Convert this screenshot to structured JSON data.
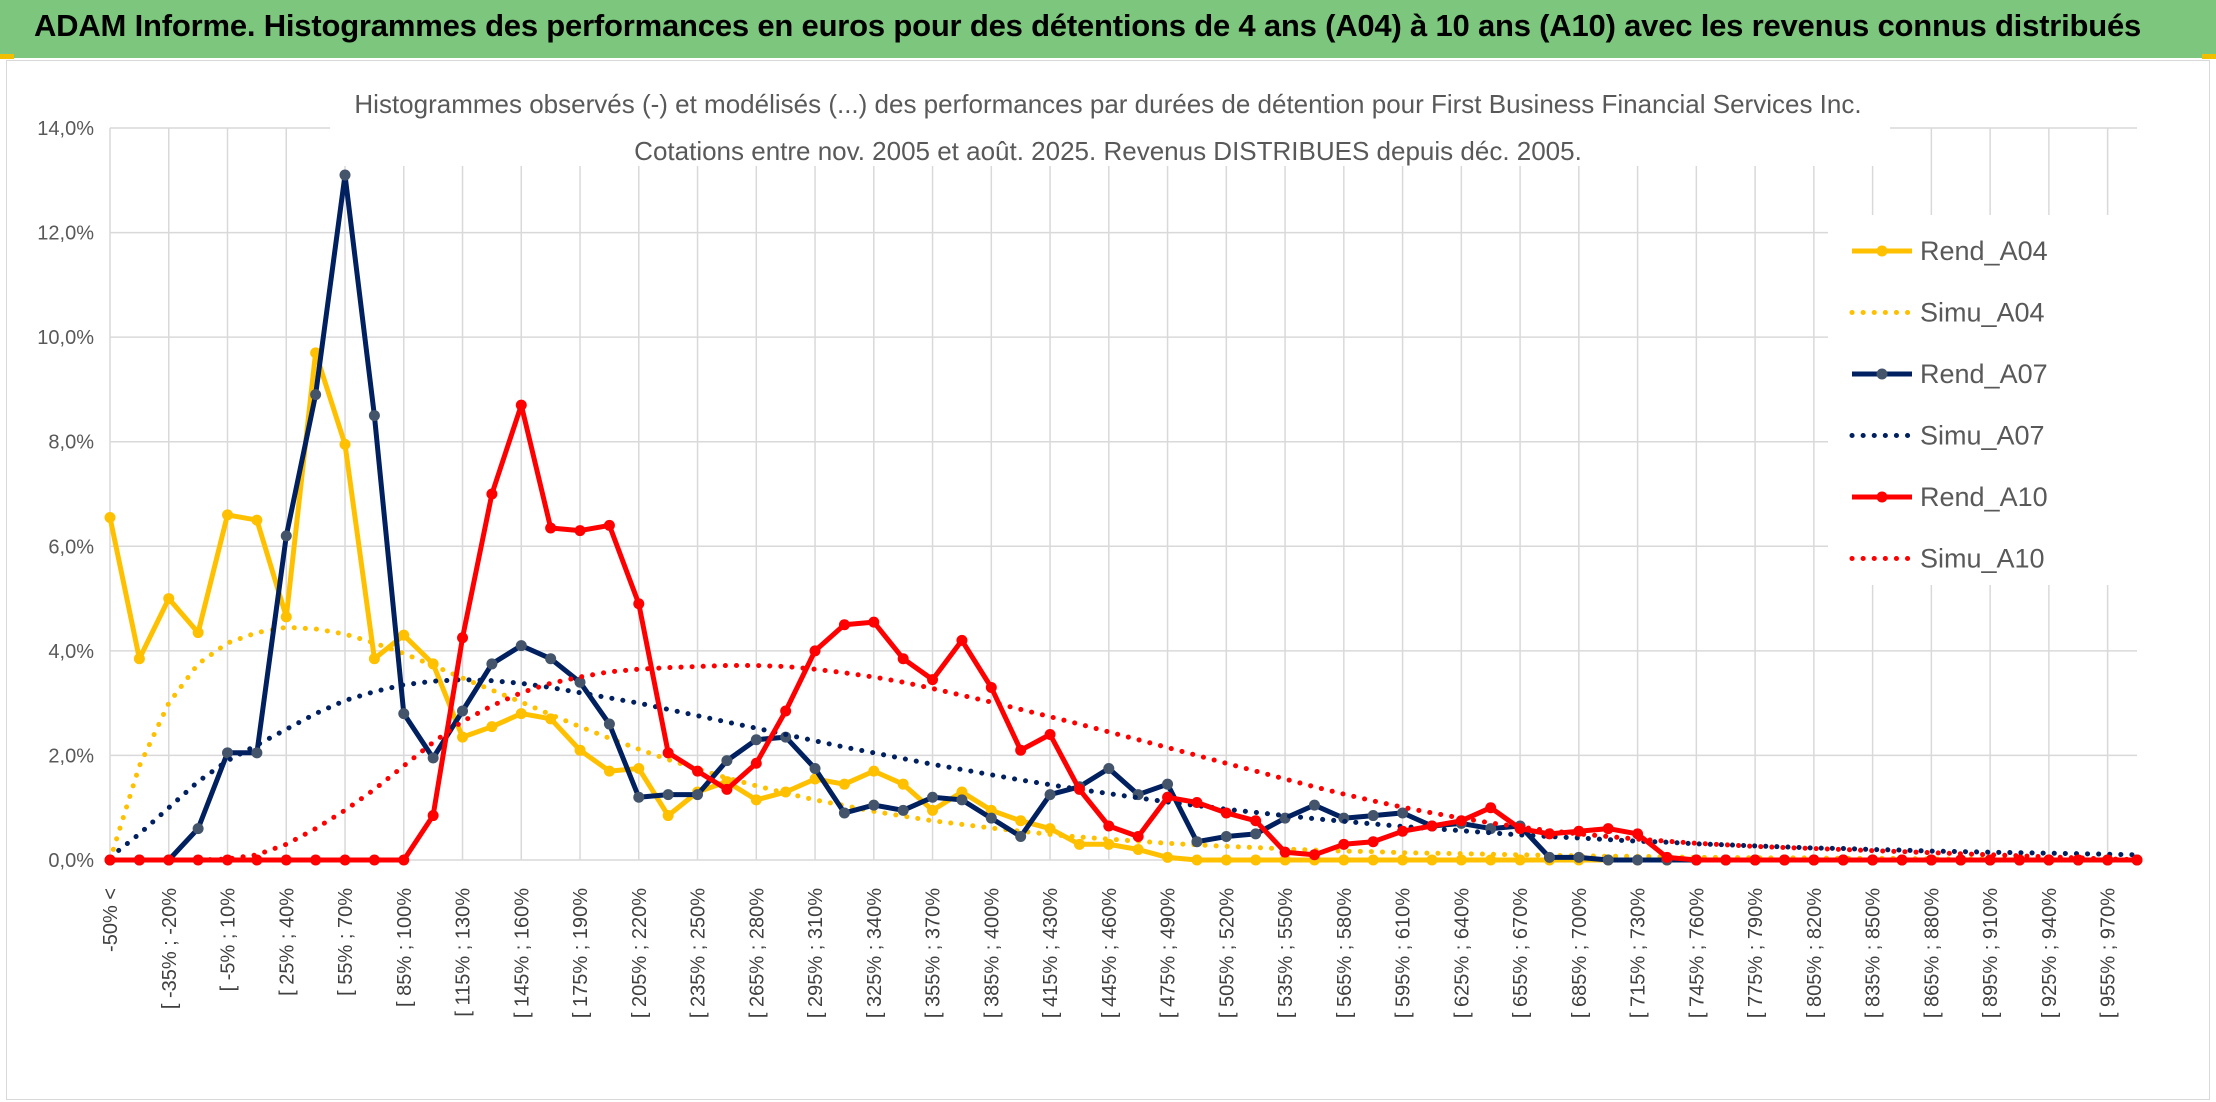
{
  "banner": {
    "title": "ADAM Informe. Histogrammes des performances en euros pour des détentions de 4 ans (A04) à 10 ans (A10) avec les revenus connus distribués"
  },
  "colors": {
    "banner_bg": "#7dc67d",
    "A04": "#ffc000",
    "A07": "#002060",
    "A10": "#ff0000",
    "grid": "#d9d9d9"
  },
  "chart_data": {
    "type": "line",
    "title": "Histogrammes observés (-) et modélisés (...) des performances par durées de détention pour First Business Financial Services Inc.",
    "subtitle": "Cotations entre nov. 2005 et août. 2025. Revenus DISTRIBUES depuis déc. 2005.",
    "ylim": [
      0,
      14
    ],
    "y_ticks": [
      "0,0%",
      "2,0%",
      "4,0%",
      "6,0%",
      "8,0%",
      "10,0%",
      "12,0%",
      "14,0%"
    ],
    "grid": true,
    "legend_position": "right",
    "x_labels": [
      "-50% <",
      "[ -35% ; -20%",
      "[ -5% ; 10%",
      "[ 25% ; 40%",
      "[ 55% ; 70%",
      "[ 85% ; 100%",
      "[ 115% ; 130%",
      "[ 145% ; 160%",
      "[ 175% ; 190%",
      "[ 205% ; 220%",
      "[ 235% ; 250%",
      "[ 265% ; 280%",
      "[ 295% ; 310%",
      "[ 325% ; 340%",
      "[ 355% ; 370%",
      "[ 385% ; 400%",
      "[ 415% ; 430%",
      "[ 445% ; 460%",
      "[ 475% ; 490%",
      "[ 505% ; 520%",
      "[ 535% ; 550%",
      "[ 565% ; 580%",
      "[ 595% ; 610%",
      "[ 625% ; 640%",
      "[ 655% ; 670%",
      "[ 685% ; 700%",
      "[ 715% ; 730%",
      "[ 745% ; 760%",
      "[ 775% ; 790%",
      "[ 805% ; 820%",
      "[ 835% ; 850%",
      "[ 865% ; 880%",
      "[ 895% ; 910%",
      "[ 925% ; 940%",
      "[ 955% ; 970%"
    ],
    "series": [
      {
        "name": "Rend_A04",
        "style": "solid",
        "color": "#ffc000",
        "values": [
          6.55,
          3.85,
          5.0,
          4.35,
          6.6,
          6.5,
          4.65,
          9.7,
          7.95,
          3.85,
          4.3,
          3.75,
          2.35,
          2.55,
          2.8,
          2.7,
          2.1,
          1.7,
          1.75,
          0.85,
          1.3,
          1.5,
          1.15,
          1.3,
          1.55,
          1.45,
          1.7,
          1.45,
          0.95,
          1.3,
          0.95,
          0.75,
          0.6,
          0.3,
          0.3,
          0.2,
          0.05,
          0,
          0,
          0,
          0,
          0,
          0,
          0,
          0,
          0,
          0,
          0,
          0,
          0,
          0,
          0,
          0,
          0,
          0,
          0,
          0,
          0,
          0,
          0,
          0,
          0,
          0,
          0,
          0,
          0,
          0,
          0,
          0,
          0
        ]
      },
      {
        "name": "Simu_A04",
        "style": "dotted",
        "color": "#ffc000",
        "values": [
          0.0,
          1.8,
          3.0,
          3.75,
          4.15,
          4.35,
          4.45,
          4.42,
          4.32,
          4.15,
          3.95,
          3.72,
          3.48,
          3.25,
          3.02,
          2.78,
          2.55,
          2.33,
          2.12,
          1.92,
          1.74,
          1.57,
          1.42,
          1.28,
          1.15,
          1.04,
          0.93,
          0.84,
          0.75,
          0.68,
          0.61,
          0.55,
          0.49,
          0.44,
          0.4,
          0.36,
          0.32,
          0.29,
          0.26,
          0.24,
          0.21,
          0.19,
          0.17,
          0.16,
          0.14,
          0.13,
          0.12,
          0.11,
          0.1,
          0.09,
          0.08,
          0.07,
          0.07,
          0.06,
          0.05,
          0.05,
          0.04,
          0.04,
          0.04,
          0.03,
          0.03,
          0.03,
          0.02,
          0.02,
          0.02,
          0.02,
          0.02,
          0.01,
          0.01,
          0.01
        ]
      },
      {
        "name": "Rend_A07",
        "style": "solid",
        "color": "#002060",
        "values": [
          0,
          0,
          0,
          0.6,
          2.05,
          2.05,
          6.2,
          8.9,
          13.1,
          8.5,
          2.8,
          1.95,
          2.85,
          3.75,
          4.1,
          3.85,
          3.4,
          2.6,
          1.2,
          1.25,
          1.25,
          1.9,
          2.3,
          2.35,
          1.75,
          0.9,
          1.05,
          0.95,
          1.2,
          1.15,
          0.8,
          0.45,
          1.25,
          1.4,
          1.75,
          1.25,
          1.45,
          0.35,
          0.45,
          0.5,
          0.8,
          1.05,
          0.8,
          0.85,
          0.9,
          0.65,
          0.7,
          0.6,
          0.65,
          0.05,
          0.05,
          0,
          0,
          0,
          0,
          0,
          0,
          0,
          0,
          0,
          0,
          0,
          0,
          0,
          0,
          0,
          0,
          0,
          0,
          0
        ]
      },
      {
        "name": "Simu_A07",
        "style": "dotted",
        "color": "#002060",
        "values": [
          0.05,
          0.5,
          1.0,
          1.5,
          1.9,
          2.2,
          2.5,
          2.8,
          3.05,
          3.22,
          3.35,
          3.42,
          3.45,
          3.43,
          3.38,
          3.3,
          3.2,
          3.1,
          3.0,
          2.88,
          2.76,
          2.64,
          2.52,
          2.4,
          2.28,
          2.16,
          2.05,
          1.94,
          1.83,
          1.73,
          1.63,
          1.53,
          1.44,
          1.35,
          1.27,
          1.19,
          1.11,
          1.04,
          0.97,
          0.91,
          0.85,
          0.79,
          0.74,
          0.69,
          0.64,
          0.6,
          0.56,
          0.52,
          0.48,
          0.45,
          0.42,
          0.39,
          0.36,
          0.34,
          0.31,
          0.29,
          0.27,
          0.25,
          0.23,
          0.22,
          0.2,
          0.19,
          0.17,
          0.16,
          0.15,
          0.14,
          0.13,
          0.12,
          0.11,
          0.1
        ]
      },
      {
        "name": "Rend_A10",
        "style": "solid",
        "color": "#ff0000",
        "values": [
          0,
          0,
          0,
          0,
          0,
          0,
          0,
          0,
          0,
          0,
          0,
          0.85,
          4.25,
          7.0,
          8.7,
          6.35,
          6.3,
          6.4,
          4.9,
          2.05,
          1.7,
          1.35,
          1.85,
          2.85,
          4.0,
          4.5,
          4.55,
          3.85,
          3.45,
          4.2,
          3.3,
          2.1,
          2.4,
          1.35,
          0.65,
          0.45,
          1.2,
          1.1,
          0.9,
          0.75,
          0.15,
          0.1,
          0.3,
          0.35,
          0.55,
          0.65,
          0.75,
          1.0,
          0.6,
          0.5,
          0.55,
          0.6,
          0.5,
          0.05,
          0,
          0,
          0,
          0,
          0,
          0,
          0,
          0,
          0,
          0,
          0,
          0,
          0,
          0,
          0,
          0
        ]
      },
      {
        "name": "Simu_A10",
        "style": "dotted",
        "color": "#ff0000",
        "values": [
          0,
          0,
          0,
          0,
          0.02,
          0.1,
          0.3,
          0.6,
          0.95,
          1.35,
          1.8,
          2.25,
          2.65,
          2.95,
          3.2,
          3.38,
          3.5,
          3.6,
          3.65,
          3.68,
          3.7,
          3.72,
          3.72,
          3.7,
          3.65,
          3.58,
          3.5,
          3.4,
          3.28,
          3.15,
          3.02,
          2.88,
          2.74,
          2.6,
          2.45,
          2.3,
          2.15,
          2.0,
          1.85,
          1.7,
          1.55,
          1.4,
          1.26,
          1.13,
          1.01,
          0.9,
          0.8,
          0.71,
          0.63,
          0.56,
          0.5,
          0.45,
          0.4,
          0.36,
          0.32,
          0.29,
          0.26,
          0.24,
          0.22,
          0.2,
          0.18,
          0.16,
          0.14,
          0.12,
          0.1,
          0.08,
          0.06,
          0.04,
          0.02,
          0.01
        ]
      }
    ]
  }
}
